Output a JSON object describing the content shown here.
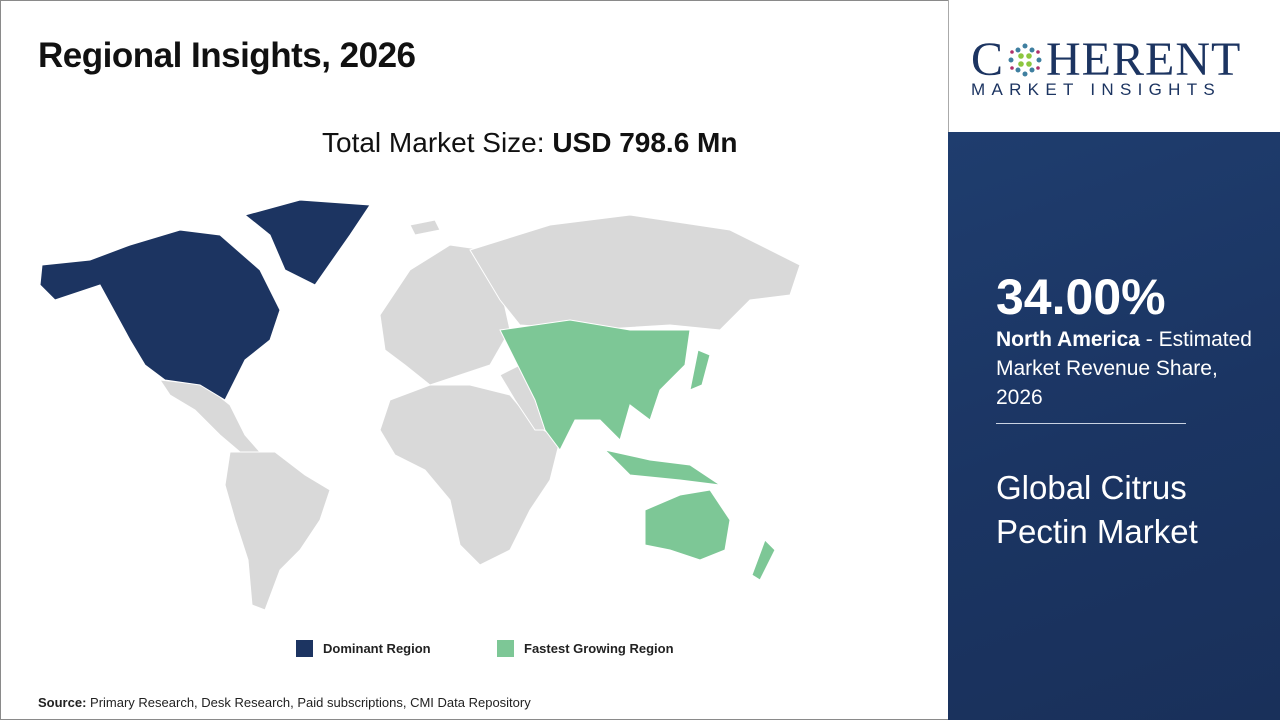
{
  "header": {
    "title": "Regional Insights, 2026",
    "total_label": "Total Market Size:",
    "total_value": "USD 798.6 Mn"
  },
  "logo": {
    "main": "COHERENT",
    "sub": "MARKET INSIGHTS"
  },
  "colors": {
    "dominant": "#1c3461",
    "fastest": "#7dc796",
    "other": "#d9d9d9",
    "panel": "#1d3866"
  },
  "chart_data": {
    "type": "map",
    "regions": [
      {
        "region": "North America",
        "category": "Dominant Region"
      },
      {
        "region": "Asia Pacific",
        "category": "Fastest Growing Region"
      }
    ],
    "legend": [
      {
        "label": "Dominant Region",
        "color": "#1c3461"
      },
      {
        "label": "Fastest Growing Region",
        "color": "#7dc796"
      }
    ]
  },
  "panel": {
    "share": "34.00%",
    "region": "North America",
    "share_text": " - Estimated Market Revenue Share, 2026",
    "market": "Global Citrus Pectin Market"
  },
  "source": {
    "label": "Source:",
    "text": " Primary Research, Desk Research, Paid subscriptions, CMI Data Repository"
  }
}
